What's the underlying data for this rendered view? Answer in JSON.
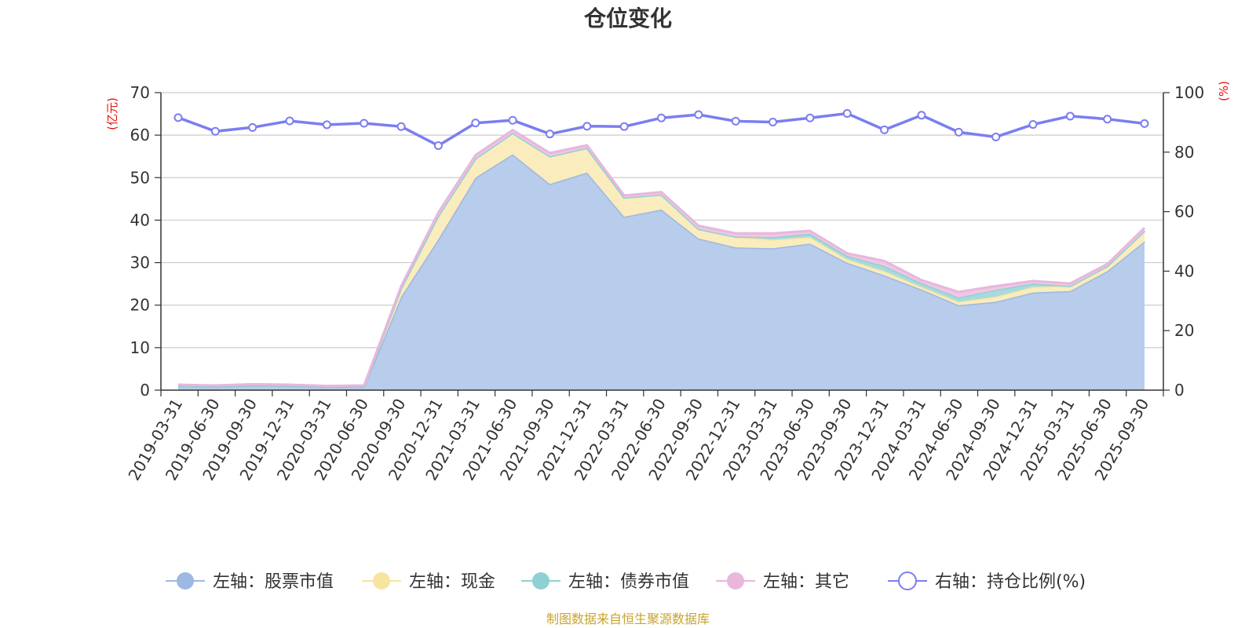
{
  "chart_data": {
    "type": "area",
    "title": "仓位变化",
    "left_unit": "(亿元)",
    "right_unit": "(%)",
    "source": "制图数据来自恒生聚源数据库",
    "categories": [
      "2019-03-31",
      "2019-06-30",
      "2019-09-30",
      "2019-12-31",
      "2020-03-31",
      "2020-06-30",
      "2020-09-30",
      "2020-12-31",
      "2021-03-31",
      "2021-06-30",
      "2021-09-30",
      "2021-12-31",
      "2022-03-31",
      "2022-06-30",
      "2022-09-30",
      "2022-12-31",
      "2023-03-31",
      "2023-06-30",
      "2023-09-30",
      "2023-12-31",
      "2024-03-31",
      "2024-06-30",
      "2024-09-30",
      "2024-12-31",
      "2025-03-31",
      "2025-06-30",
      "2025-09-30"
    ],
    "ylim_left": [
      0,
      70
    ],
    "yticks_left": [
      0,
      10,
      20,
      30,
      40,
      50,
      60,
      70
    ],
    "ylim_right": [
      0,
      100
    ],
    "yticks_right": [
      0,
      20,
      40,
      60,
      80,
      100
    ],
    "grid": true,
    "legend_position": "bottom",
    "stacked_series": [
      {
        "name": "左轴：股票市值",
        "color": "#9db8e2",
        "fill": "#b8cceb",
        "values": [
          1.0,
          0.8,
          1.1,
          1.0,
          0.7,
          0.8,
          22.0,
          35.5,
          50.0,
          55.5,
          48.5,
          51.2,
          40.8,
          42.5,
          35.7,
          33.6,
          33.4,
          34.5,
          30.0,
          27.0,
          23.7,
          20.0,
          20.8,
          23.0,
          23.3,
          28.0,
          35.0
        ]
      },
      {
        "name": "左轴：现金",
        "color": "#f7e4a0",
        "fill": "#faecbc",
        "values": [
          0.1,
          0.1,
          0.1,
          0.1,
          0.1,
          0.1,
          2.0,
          5.5,
          4.5,
          5.0,
          6.5,
          5.8,
          4.5,
          3.5,
          2.2,
          2.5,
          2.0,
          1.5,
          0.8,
          1.0,
          0.6,
          0.8,
          1.2,
          1.3,
          1.2,
          1.2,
          2.5
        ]
      },
      {
        "name": "左轴：债券市值",
        "color": "#8fd0d3",
        "fill": "#a7dadc",
        "values": [
          0,
          0,
          0,
          0,
          0,
          0,
          0,
          0,
          0,
          0,
          0,
          0,
          0,
          0,
          0,
          0,
          0.6,
          0.8,
          0.8,
          1.2,
          0.9,
          1.0,
          1.6,
          0.8,
          0,
          0,
          0
        ]
      },
      {
        "name": "左轴：其它",
        "color": "#e8b7dc",
        "fill": "#eec7e4",
        "values": [
          0.2,
          0.2,
          0.2,
          0.2,
          0.2,
          0.2,
          0.5,
          0.8,
          0.8,
          0.7,
          0.8,
          0.6,
          0.5,
          0.6,
          0.8,
          0.8,
          0.9,
          0.7,
          0.6,
          1.2,
          0.7,
          1.3,
          0.9,
          0.6,
          0.6,
          0.5,
          0.7
        ]
      }
    ],
    "line_series": {
      "name": "右轴：持仓比例(%)",
      "color": "#7b7ef0",
      "values": [
        91.6,
        87.0,
        88.3,
        90.5,
        89.2,
        89.7,
        88.6,
        82.2,
        89.8,
        90.7,
        86.1,
        88.7,
        88.6,
        91.5,
        92.6,
        90.4,
        90.1,
        91.5,
        93.0,
        87.5,
        92.4,
        86.7,
        85.1,
        89.3,
        92.1,
        91.1,
        89.6
      ]
    }
  }
}
